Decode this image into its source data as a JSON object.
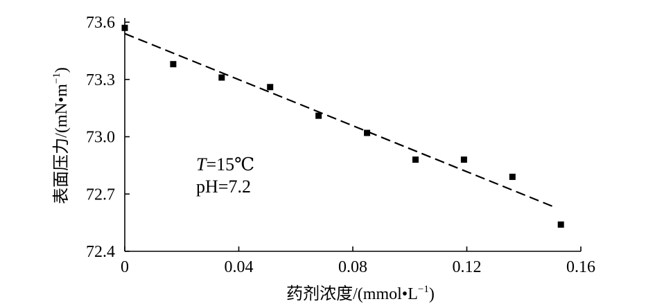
{
  "chart_data": {
    "type": "scatter",
    "title": "",
    "xlabel_cn": "药剂浓度",
    "xlabel_unit": "/(mmol•L",
    "xlabel_sup": "−1",
    "xlabel_end": ")",
    "ylabel_cn": "表面压力",
    "ylabel_unit": "/(mN•m",
    "ylabel_sup": "−1",
    "ylabel_end": ")",
    "xlim": [
      0,
      0.16
    ],
    "ylim": [
      72.4,
      73.6
    ],
    "xticks": [
      0,
      0.04,
      0.08,
      0.12,
      0.16
    ],
    "xtick_labels": [
      "0",
      "0.04",
      "0.08",
      "0.12",
      "0.16"
    ],
    "yticks": [
      72.4,
      72.7,
      73.0,
      73.3,
      73.6
    ],
    "ytick_labels": [
      "72.4",
      "72.7",
      "73.0",
      "73.3",
      "73.6"
    ],
    "grid": false,
    "series": [
      {
        "kind": "points",
        "x": [
          0,
          0.017,
          0.034,
          0.051,
          0.068,
          0.085,
          0.102,
          0.119,
          0.136,
          0.153
        ],
        "y": [
          73.57,
          73.38,
          73.31,
          73.26,
          73.11,
          73.02,
          72.88,
          72.88,
          72.79,
          72.54
        ]
      },
      {
        "kind": "fit-line",
        "style": "dashed",
        "x": [
          0,
          0.151
        ],
        "y": [
          73.54,
          72.63
        ]
      }
    ],
    "annotations": {
      "line1_var": "T",
      "line1_rest": "=15℃",
      "line2": "pH=7.2"
    }
  }
}
